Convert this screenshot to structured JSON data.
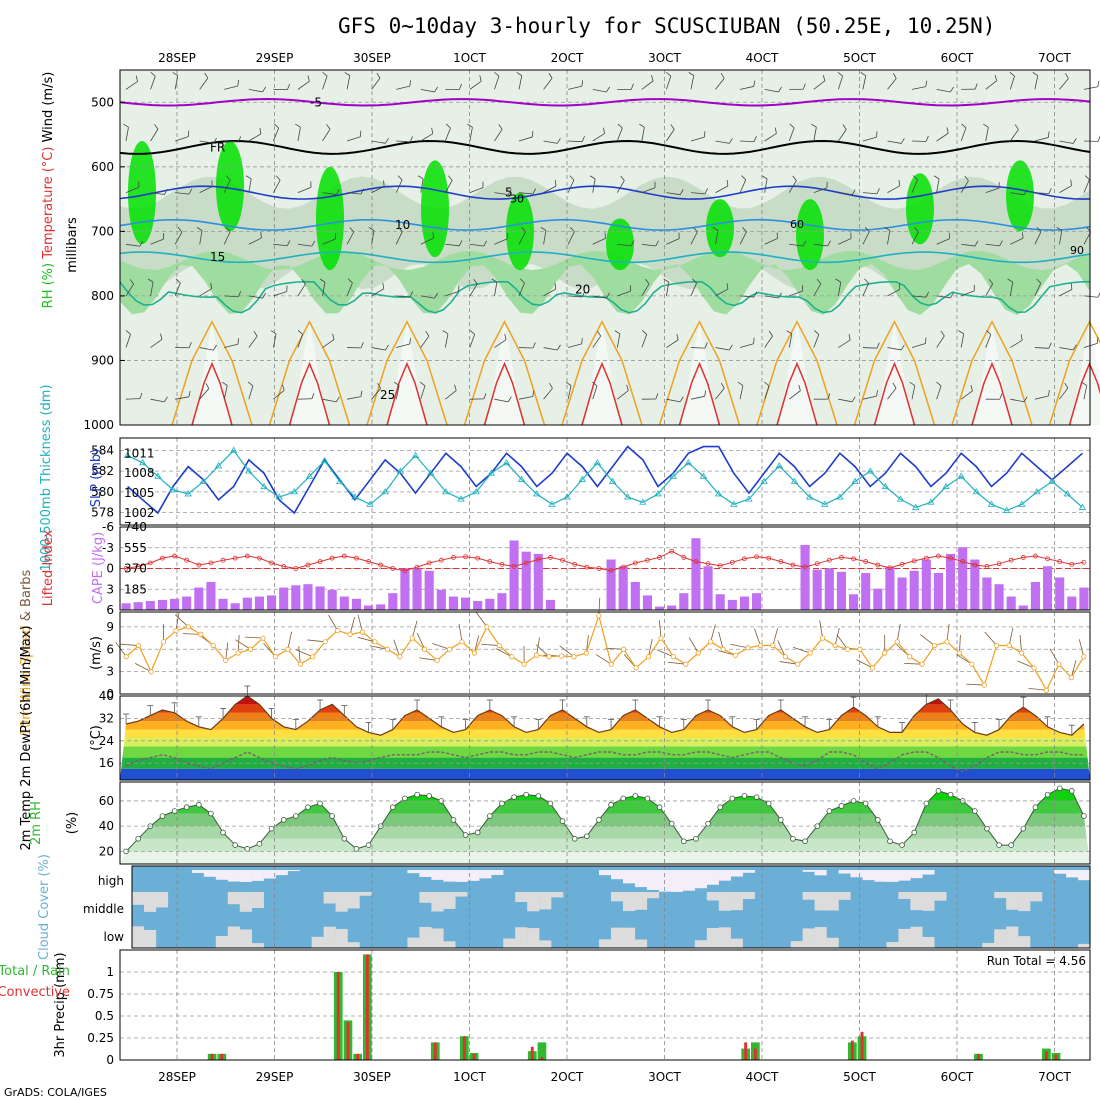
{
  "title": "GFS 0~10day 3-hourly for SCUSCIUBAN (50.25E, 10.25N)",
  "credit": "GrADS: COLA/IGES",
  "colors": {
    "purple": "#a000c8",
    "blue": "#1e3cc8",
    "cyan": "#20b0c0",
    "orange": "#f0a020",
    "red": "#e03030",
    "green": "#30b830",
    "rh_light": "#e6f0e6",
    "rh_mid": "#c8dcc8",
    "rh_dark": "#00e000",
    "cloud_blue": "#6baed6",
    "cloud_gray": "#dcdcdc"
  },
  "time_axis": {
    "labels": [
      "28SEP",
      "29SEP",
      "30SEP",
      "1OCT",
      "2OCT",
      "3OCT",
      "4OCT",
      "5OCT",
      "6OCT",
      "7OCT"
    ]
  },
  "chart_data": [
    {
      "type": "heatmap",
      "panel": "upper_air",
      "ylabel": "millibars",
      "y_title_parts": [
        "RH (%)",
        "Temperature (°C)",
        "Wind (m/s)"
      ],
      "ylim": [
        1000,
        450
      ],
      "yticks": [
        "500",
        "600",
        "700",
        "800",
        "900",
        "1000"
      ],
      "contour_labels": {
        "purple": "-5",
        "black": "FR",
        "blue": "5",
        "lightblue": "10",
        "cyan": "15",
        "teal": "20",
        "orange": "25"
      },
      "rh_labels": [
        "30",
        "60",
        "90"
      ]
    },
    {
      "type": "line",
      "panel": "slp_thickness",
      "y_title_parts": [
        "1000-500mb Thickness (dm)",
        "SLP (mb)"
      ],
      "yticks_left": [
        "584",
        "582",
        "580",
        "578"
      ],
      "yticks_right": [
        "1011",
        "1008",
        "1005",
        "1002"
      ],
      "series": [
        {
          "name": "SLP (mb)",
          "axis": "right",
          "values": [
            1006,
            1004,
            1002,
            1006,
            1009,
            1007,
            1004,
            1006,
            1010,
            1008,
            1004,
            1002,
            1006,
            1010,
            1007,
            1004,
            1007,
            1010,
            1008,
            1005,
            1008,
            1011,
            1009,
            1006,
            1008,
            1011,
            1009,
            1006,
            1008,
            1011,
            1009,
            1006,
            1009,
            1012,
            1010,
            1006,
            1008,
            1011,
            1012,
            1012,
            1008,
            1005,
            1008,
            1011,
            1009,
            1006,
            1008,
            1011,
            1009,
            1006,
            1008,
            1011,
            1009,
            1006,
            1008,
            1011,
            1009,
            1006,
            1008,
            1011,
            1009,
            1007,
            1009,
            1011
          ]
        },
        {
          "name": "1000-500mb Thickness (dm)",
          "axis": "left",
          "values": [
            583.5,
            582.8,
            581.5,
            580.2,
            579.8,
            581,
            582.5,
            584,
            582,
            580.5,
            579.5,
            580,
            581.5,
            583,
            581,
            579.5,
            578.8,
            580,
            582,
            583.5,
            581.8,
            580,
            579.3,
            580,
            581.8,
            582.8,
            581.2,
            579.8,
            578.8,
            579.5,
            581.2,
            582.8,
            581,
            579.5,
            579,
            579.8,
            581.5,
            582.8,
            581.5,
            579.8,
            578.8,
            579.3,
            581,
            582.5,
            581,
            579.5,
            578.8,
            579.5,
            581,
            582,
            580.5,
            579.3,
            578.5,
            579,
            580.5,
            581.5,
            580,
            578.8,
            578.2,
            578.8,
            580,
            581,
            579.8,
            578.5
          ]
        }
      ]
    },
    {
      "type": "bar",
      "panel": "cape_li",
      "y_title_parts": [
        "Lifted Index",
        "CAPE (J/kg)"
      ],
      "yticks_left": [
        "-6",
        "-3",
        "0",
        "3",
        "6"
      ],
      "yticks_right": [
        "740",
        "555",
        "370",
        "185"
      ],
      "series": [
        {
          "name": "CAPE (J/kg)",
          "type": "bar",
          "values": [
            60,
            70,
            80,
            90,
            100,
            120,
            200,
            250,
            100,
            60,
            110,
            120,
            130,
            200,
            220,
            230,
            210,
            180,
            120,
            100,
            40,
            50,
            150,
            370,
            370,
            350,
            180,
            120,
            110,
            80,
            100,
            150,
            620,
            520,
            500,
            90,
            0,
            0,
            0,
            0,
            450,
            390,
            250,
            130,
            30,
            40,
            150,
            640,
            390,
            140,
            90,
            120,
            150,
            0,
            0,
            0,
            580,
            360,
            370,
            340,
            140,
            330,
            190,
            380,
            290,
            350,
            450,
            330,
            500,
            560,
            450,
            290,
            230,
            120,
            40,
            250,
            390,
            290,
            120,
            200
          ]
        },
        {
          "name": "Lifted Index",
          "type": "line",
          "values": [
            0,
            -0.3,
            -0.8,
            -1.5,
            -1.8,
            -1.2,
            -0.5,
            -0.8,
            -1.2,
            -1.5,
            -1.8,
            -1.5,
            -0.8,
            -0.3,
            0,
            -0.5,
            -1,
            -1.5,
            -1.8,
            -1.5,
            -1,
            -0.5,
            0,
            0.3,
            -0.2,
            -0.8,
            -1.2,
            -1.6,
            -1.7,
            -1.5,
            -1,
            -0.6,
            -0.3,
            -0.8,
            -1.3,
            -1.6,
            -1.2,
            -0.6,
            -0.2,
            0,
            0.3,
            -0.2,
            -0.8,
            -1.2,
            -1.6,
            -2.5,
            -1.6,
            -1,
            -0.7,
            -0.4,
            -0.9,
            -1.4,
            -1.7,
            -1.5,
            -1,
            -0.5,
            -0.2,
            -0.7,
            -1.2,
            -1.6,
            -1.4,
            -1,
            -0.5,
            -0.1,
            -0.6,
            -1.1,
            -1.5,
            -1.8,
            -1.5,
            -1,
            -0.5,
            -0.3,
            -0.7,
            -1.2,
            -1.6,
            -1.8,
            -1.4,
            -1,
            -0.6,
            -0.9
          ]
        }
      ]
    },
    {
      "type": "line",
      "panel": "wind10m",
      "y_title_parts": [
        "10m Wind Speed",
        "& Barbs"
      ],
      "ylabel": "(m/s)",
      "yticks": [
        "0",
        "3",
        "6",
        "9"
      ],
      "ylim": [
        0,
        11
      ],
      "series": [
        {
          "name": "10m Wind Speed",
          "values": [
            5,
            6.5,
            3,
            7,
            8.5,
            9,
            8,
            6.5,
            4.5,
            5.5,
            6,
            7.5,
            5,
            6,
            4,
            5,
            7,
            8.5,
            8,
            8.3,
            7,
            6,
            5,
            7.5,
            6,
            4.5,
            6,
            7,
            5.5,
            9,
            6.5,
            5,
            4,
            5.2,
            5,
            5.1,
            5,
            5.5,
            10.5,
            4,
            6,
            3.5,
            5,
            7.5,
            5,
            4,
            5.5,
            7,
            6,
            5.2,
            6.2,
            6.5,
            6.5,
            5,
            4,
            5.5,
            7.5,
            6.5,
            6,
            6,
            3.5,
            5.5,
            7,
            5,
            4,
            6.5,
            7,
            5.5,
            4,
            1.2,
            6.5,
            6.5,
            5.5,
            3.5,
            0.5,
            4,
            2.2,
            5
          ]
        }
      ]
    },
    {
      "type": "area",
      "panel": "temp2m",
      "y_title_parts": [
        "2m Temp",
        "2m DewPt",
        "(6hr Min/Max)"
      ],
      "ylabel": "(°C)",
      "yticks": [
        "16",
        "24",
        "32",
        "40"
      ],
      "ylim": [
        10,
        40
      ],
      "series": [
        {
          "name": "2m Temp",
          "values": [
            30,
            31,
            33,
            35,
            34,
            31,
            29,
            28,
            32,
            37,
            40,
            37,
            32,
            29,
            28,
            31,
            35,
            37,
            33,
            29,
            27,
            26,
            28,
            33,
            35,
            32,
            29,
            27,
            28,
            33,
            35,
            33,
            29,
            27,
            28,
            33,
            35,
            32,
            29,
            27,
            28,
            33,
            35,
            32,
            29,
            27,
            28,
            33,
            35,
            33,
            29,
            27,
            28,
            33,
            35,
            32,
            29,
            27,
            28,
            33,
            36,
            33,
            29,
            27,
            27,
            33,
            37,
            39,
            35,
            30,
            27,
            26,
            28,
            33,
            36,
            33,
            29,
            27,
            26,
            30
          ]
        },
        {
          "name": "2m DewPt",
          "values": [
            15,
            17,
            18,
            19,
            18,
            16,
            15,
            14,
            16,
            18,
            20,
            18,
            16,
            15,
            14,
            15,
            17,
            18,
            17,
            16,
            17,
            18,
            19,
            19,
            19,
            20,
            20,
            19,
            18,
            19,
            20,
            20,
            19,
            19,
            20,
            20,
            19,
            18,
            19,
            20,
            20,
            19,
            19,
            20,
            20,
            19,
            19,
            20,
            20,
            19,
            18,
            19,
            20,
            20,
            18,
            16,
            15,
            17,
            20,
            20,
            19,
            16,
            14,
            16,
            19,
            20,
            20,
            18,
            15,
            13,
            15,
            18,
            20,
            20,
            19,
            19,
            20,
            20,
            19,
            19
          ]
        }
      ]
    },
    {
      "type": "area",
      "panel": "rh2m",
      "ylabel": "2m RH",
      "yunit": "(%)",
      "yticks": [
        "20",
        "40",
        "60"
      ],
      "ylim": [
        10,
        75
      ],
      "series": [
        {
          "name": "2m RH",
          "values": [
            20,
            30,
            40,
            48,
            52,
            55,
            57,
            50,
            35,
            25,
            22,
            26,
            38,
            45,
            48,
            55,
            58,
            48,
            30,
            22,
            25,
            40,
            55,
            62,
            65,
            64,
            60,
            45,
            33,
            35,
            48,
            58,
            63,
            65,
            64,
            58,
            44,
            30,
            32,
            45,
            57,
            62,
            64,
            62,
            55,
            42,
            28,
            30,
            42,
            55,
            62,
            64,
            63,
            58,
            45,
            30,
            28,
            40,
            52,
            56,
            60,
            58,
            45,
            28,
            25,
            35,
            58,
            68,
            65,
            60,
            52,
            38,
            25,
            25,
            38,
            55,
            65,
            70,
            68,
            48
          ]
        }
      ]
    },
    {
      "type": "heatmap",
      "panel": "cloud_cover",
      "ylabel": "Cloud Cover (%)",
      "yticks": [
        "high",
        "middle",
        "low"
      ]
    },
    {
      "type": "bar",
      "panel": "precip",
      "y_title_parts": [
        "Total / Rain",
        "Convective"
      ],
      "ylabel": "3hr Precip (mm)",
      "yticks": [
        "0",
        "0.25",
        "0.5",
        "0.75",
        "1"
      ],
      "ylim": [
        0,
        1.25
      ],
      "run_total_label": "Run Total = 4.56",
      "series": [
        {
          "name": "Total / Rain",
          "values": [
            0,
            0,
            0,
            0,
            0,
            0,
            0,
            0,
            0,
            0.07,
            0.07,
            0,
            0,
            0,
            0,
            0,
            0,
            0,
            0,
            0,
            0,
            0,
            1.0,
            0.45,
            0.07,
            1.2,
            0,
            0,
            0,
            0,
            0,
            0,
            0.2,
            0,
            0,
            0.27,
            0.08,
            0,
            0,
            0,
            0,
            0,
            0.1,
            0.2,
            0,
            0,
            0,
            0,
            0,
            0,
            0,
            0,
            0,
            0,
            0,
            0,
            0,
            0,
            0,
            0,
            0,
            0,
            0,
            0,
            0.13,
            0.2,
            0,
            0,
            0,
            0,
            0,
            0,
            0,
            0,
            0,
            0.2,
            0.27,
            0,
            0,
            0,
            0,
            0,
            0,
            0,
            0,
            0,
            0,
            0,
            0.07,
            0,
            0,
            0,
            0,
            0,
            0,
            0.13,
            0.08,
            0,
            0,
            0
          ]
        },
        {
          "name": "Convective",
          "values": [
            0,
            0,
            0,
            0,
            0,
            0,
            0,
            0,
            0,
            0.07,
            0.07,
            0,
            0,
            0,
            0,
            0,
            0,
            0,
            0,
            0,
            0,
            0,
            1.0,
            0.43,
            0.07,
            1.2,
            0,
            0,
            0,
            0,
            0,
            0,
            0.2,
            0,
            0,
            0.27,
            0.07,
            0,
            0,
            0,
            0,
            0,
            0.15,
            0.03,
            0,
            0,
            0,
            0,
            0,
            0,
            0,
            0,
            0,
            0,
            0,
            0,
            0,
            0,
            0,
            0,
            0,
            0,
            0,
            0,
            0.2,
            0.13,
            0,
            0,
            0,
            0,
            0,
            0,
            0,
            0,
            0,
            0.22,
            0.32,
            0,
            0,
            0,
            0,
            0,
            0,
            0,
            0,
            0,
            0,
            0,
            0.07,
            0,
            0,
            0,
            0,
            0,
            0,
            0.1,
            0.06,
            0,
            0,
            0
          ]
        }
      ]
    }
  ]
}
